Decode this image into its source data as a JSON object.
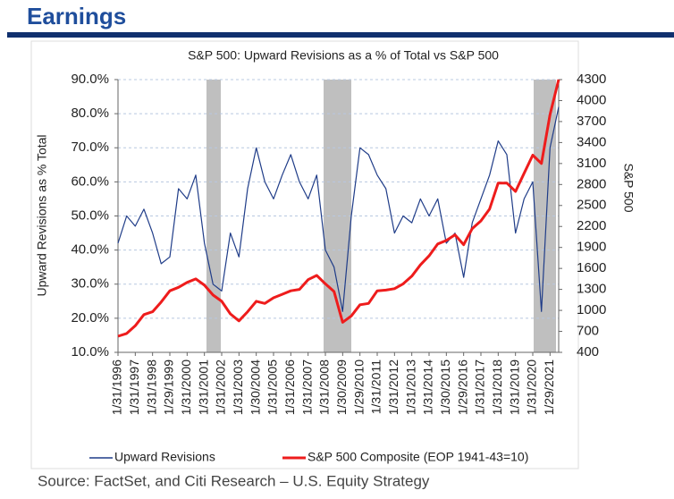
{
  "header": {
    "title": "Earnings"
  },
  "chart_data": {
    "type": "line",
    "title": "S&P 500: Upward Revisions as a % of Total vs S&P 500",
    "y_label": "Upward Revisions as % Total",
    "y2_label": "S&P 500",
    "categories": [
      "1/31/1996",
      null,
      "1/31/1997",
      null,
      "1/31/1998",
      null,
      "1/29/1999",
      null,
      "1/31/2000",
      null,
      "1/31/2001",
      null,
      "1/31/2002",
      null,
      "1/31/2003",
      null,
      "1/30/2004",
      null,
      "1/31/2005",
      null,
      "1/31/2006",
      null,
      "1/31/2007",
      null,
      "1/31/2008",
      null,
      "1/30/2009",
      null,
      "1/29/2010",
      null,
      "1/31/2011",
      null,
      "1/31/2012",
      null,
      "1/31/2013",
      null,
      "1/31/2014",
      null,
      "1/30/2015",
      null,
      "1/29/2016",
      null,
      "1/31/2017",
      null,
      "1/31/2018",
      null,
      "1/31/2019",
      null,
      "1/31/2020",
      null,
      "1/29/2021",
      null
    ],
    "series": [
      {
        "name": "Upward Revisions",
        "color": "#1f3c88",
        "axis": "y",
        "values": [
          42,
          50,
          47,
          52,
          45,
          36,
          38,
          58,
          55,
          62,
          42,
          30,
          28,
          45,
          38,
          58,
          70,
          60,
          55,
          62,
          68,
          60,
          55,
          62,
          40,
          35,
          22,
          50,
          70,
          68,
          62,
          58,
          45,
          50,
          48,
          55,
          50,
          55,
          42,
          45,
          32,
          48,
          55,
          62,
          72,
          68,
          45,
          55,
          60,
          22,
          70,
          82
        ]
      },
      {
        "name": "S&P 500 Composite (EOP 1941-43=10)",
        "color": "#ee1c1c",
        "axis": "y2",
        "values": [
          630,
          670,
          780,
          940,
          980,
          1120,
          1280,
          1330,
          1400,
          1450,
          1360,
          1220,
          1130,
          950,
          850,
          980,
          1130,
          1100,
          1180,
          1230,
          1280,
          1300,
          1440,
          1500,
          1380,
          1270,
          830,
          920,
          1080,
          1100,
          1280,
          1290,
          1310,
          1380,
          1490,
          1650,
          1780,
          1950,
          2000,
          2080,
          1940,
          2170,
          2280,
          2450,
          2820,
          2820,
          2700,
          2960,
          3220,
          3100,
          3800,
          4300
        ]
      }
    ],
    "ylim": [
      10,
      90
    ],
    "yticks": [
      {
        "value": 10,
        "label": "10.0%"
      },
      {
        "value": 20,
        "label": "20.0%"
      },
      {
        "value": 30,
        "label": "30.0%"
      },
      {
        "value": 40,
        "label": "40.0%"
      },
      {
        "value": 50,
        "label": "50.0%"
      },
      {
        "value": 60,
        "label": "60.0%"
      },
      {
        "value": 70,
        "label": "70.0%"
      },
      {
        "value": 80,
        "label": "80.0%"
      },
      {
        "value": 90,
        "label": "90.0%"
      }
    ],
    "y2lim": [
      400,
      4300
    ],
    "y2ticks": [
      400,
      700,
      1000,
      1300,
      1600,
      1900,
      2200,
      2500,
      2800,
      3100,
      3400,
      3700,
      4000,
      4300
    ],
    "grid": true,
    "legend": "bottom"
  },
  "footer": {
    "source": "Source: FactSet, and Citi Research – U.S. Equity Strategy"
  }
}
